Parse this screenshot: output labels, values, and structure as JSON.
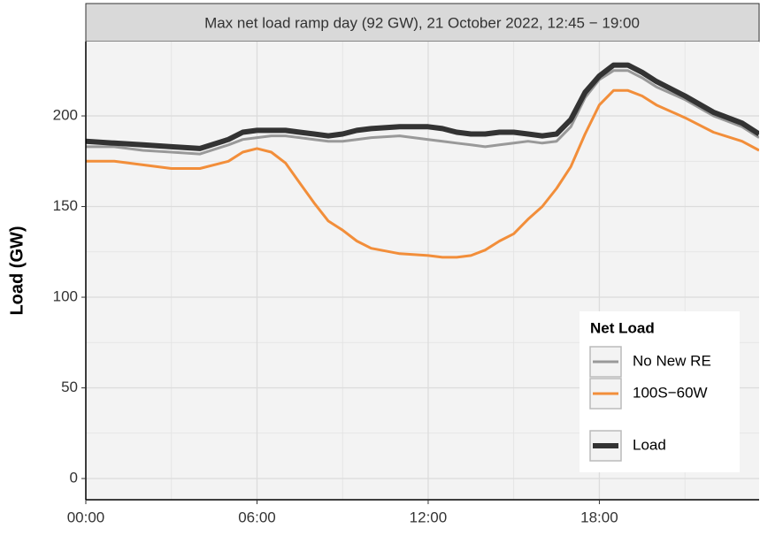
{
  "chart_data": {
    "type": "line",
    "title": "Max net load ramp day (92 GW), 21 October 2022, 12:45 − 19:00",
    "y_label": "Load (GW)",
    "legend_title": "Net Load",
    "legend_position": "bottom-right",
    "grid": true,
    "x": [
      0,
      1,
      2,
      3,
      4,
      5,
      5.5,
      6,
      6.5,
      7,
      7.5,
      8,
      8.5,
      9,
      9.5,
      10,
      11,
      12,
      12.5,
      13,
      13.5,
      14,
      14.5,
      15,
      15.5,
      16,
      16.5,
      17,
      17.5,
      18,
      18.5,
      19,
      19.5,
      20,
      21,
      22,
      23,
      23.6
    ],
    "xlim": [
      0,
      23.6
    ],
    "xticks": [
      {
        "value": 0,
        "label": "00:00"
      },
      {
        "value": 6,
        "label": "06:00"
      },
      {
        "value": 12,
        "label": "12:00"
      },
      {
        "value": 18,
        "label": "18:00"
      }
    ],
    "ylim": [
      -11.7,
      241
    ],
    "yticks": [
      0,
      50,
      100,
      150,
      200
    ],
    "series": [
      {
        "name": "No New RE",
        "color": "#999999",
        "line_width": 3,
        "values": [
          183,
          183,
          181,
          180,
          179,
          184,
          187,
          188,
          189,
          189,
          188,
          187,
          186,
          186,
          187,
          188,
          189,
          187,
          186,
          185,
          184,
          183,
          184,
          185,
          186,
          185,
          186,
          194,
          210,
          220,
          225,
          225,
          221,
          216,
          209,
          200,
          194,
          188
        ]
      },
      {
        "name": "100S−60W",
        "color": "#f28e3a",
        "line_width": 3,
        "values": [
          175,
          175,
          173,
          171,
          171,
          175,
          180,
          182,
          180,
          174,
          163,
          152,
          142,
          137,
          131,
          127,
          124,
          123,
          122,
          122,
          123,
          126,
          131,
          135,
          143,
          150,
          160,
          172,
          190,
          206,
          214,
          214,
          211,
          206,
          199,
          191,
          186,
          181
        ]
      },
      {
        "name": "Load",
        "color": "#333333",
        "line_width": 6,
        "values": [
          186,
          185,
          184,
          183,
          182,
          187,
          191,
          192,
          192,
          192,
          191,
          190,
          189,
          190,
          192,
          193,
          194,
          194,
          193,
          191,
          190,
          190,
          191,
          191,
          190,
          189,
          190,
          198,
          213,
          222,
          228,
          228,
          224,
          219,
          211,
          202,
          196,
          190
        ]
      }
    ]
  }
}
